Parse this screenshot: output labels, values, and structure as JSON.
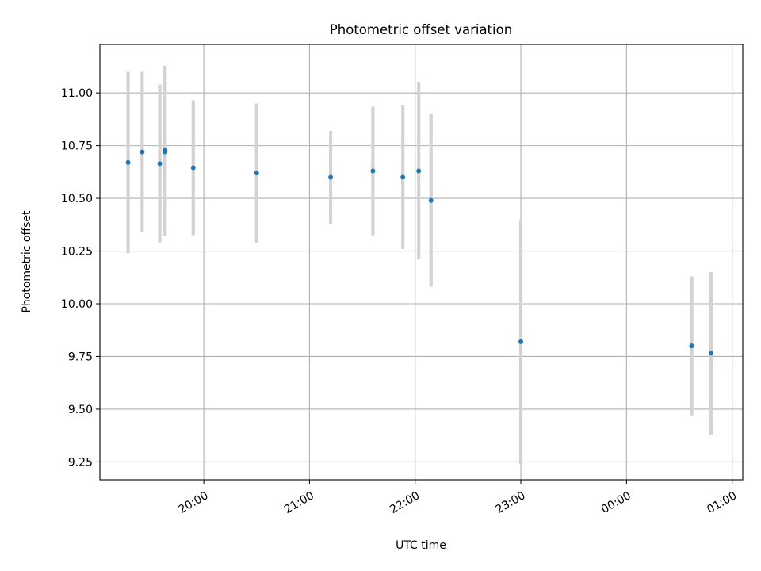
{
  "chart_data": {
    "type": "scatter",
    "title": "Photometric offset variation",
    "xlabel": "UTC time",
    "ylabel": "Photometric offset",
    "grid": true,
    "legend": "none",
    "xlim": [
      "19:01",
      "01:06"
    ],
    "ylim": [
      9.165,
      11.23
    ],
    "xticks": [
      "20:00",
      "21:00",
      "22:00",
      "23:00",
      "00:00",
      "01:00"
    ],
    "yticks": [
      "9.25",
      "9.50",
      "9.75",
      "10.00",
      "10.25",
      "10.50",
      "10.75",
      "11.00"
    ],
    "point_color": "#1f77b4",
    "errorbar_color": "#d3d3d3",
    "points": [
      {
        "x": "19:17",
        "y": 10.67,
        "yerr": 0.43
      },
      {
        "x": "19:25",
        "y": 10.72,
        "yerr": 0.38
      },
      {
        "x": "19:35",
        "y": 10.665,
        "yerr": 0.375
      },
      {
        "x": "19:38",
        "y": 10.73,
        "yerr": 0.4
      },
      {
        "x": "19:38",
        "y": 10.72,
        "yerr": 0.4
      },
      {
        "x": "19:54",
        "y": 10.645,
        "yerr": 0.32
      },
      {
        "x": "20:30",
        "y": 10.62,
        "yerr": 0.33
      },
      {
        "x": "21:12",
        "y": 10.6,
        "yerr": 0.22
      },
      {
        "x": "21:36",
        "y": 10.63,
        "yerr": 0.305
      },
      {
        "x": "21:53",
        "y": 10.6,
        "yerr": 0.34
      },
      {
        "x": "22:02",
        "y": 10.63,
        "yerr": 0.42
      },
      {
        "x": "22:09",
        "y": 10.49,
        "yerr": 0.41
      },
      {
        "x": "23:00",
        "y": 9.82,
        "yerr": 0.58
      },
      {
        "x": "00:37",
        "y": 9.8,
        "yerr": 0.33
      },
      {
        "x": "00:48",
        "y": 9.765,
        "yerr": 0.385
      }
    ]
  }
}
